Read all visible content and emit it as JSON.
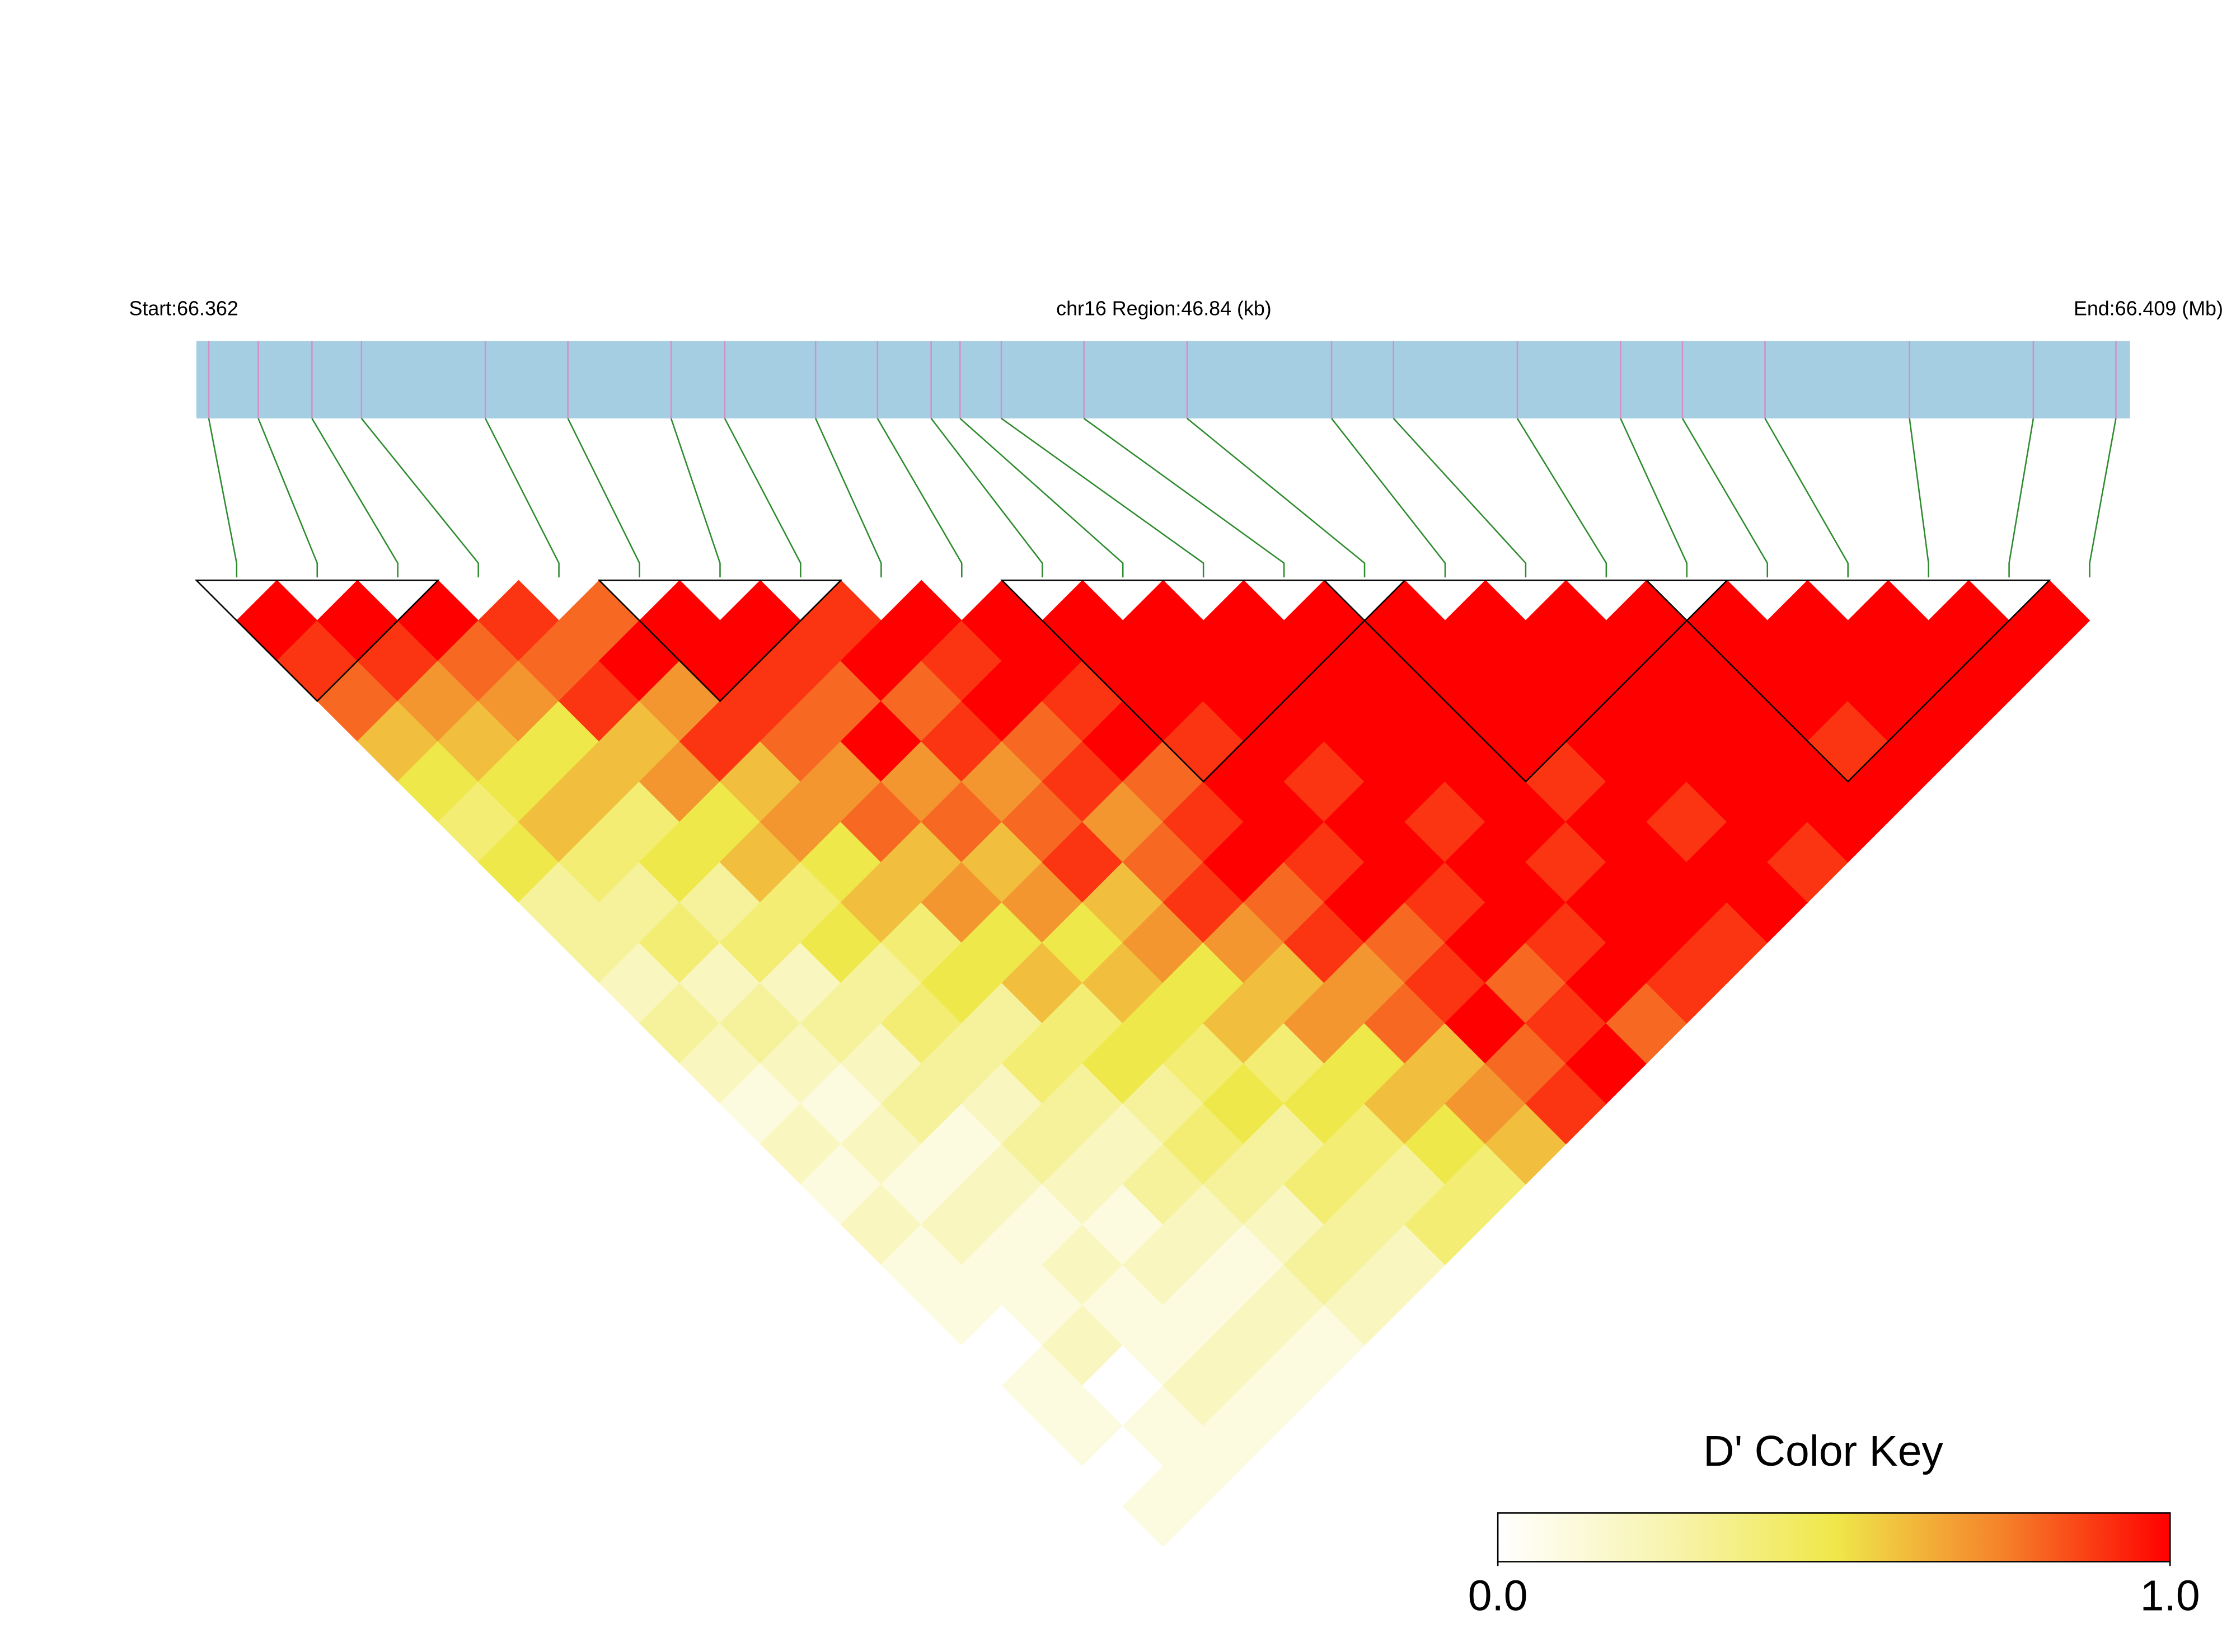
{
  "chart_data": {
    "type": "ld_heatmap",
    "start_label": "Start:66.362",
    "region_label": "chr16 Region:46.84 (kb)",
    "end_label": "End:66.409 (Mb)",
    "xlim": [
      0,
      46.84
    ],
    "positions": [
      0.3,
      1.5,
      2.8,
      4.0,
      7.0,
      9.0,
      11.5,
      12.8,
      15.0,
      16.5,
      17.8,
      18.5,
      19.5,
      21.5,
      24.0,
      27.5,
      29.0,
      32.0,
      34.5,
      36.0,
      38.0,
      41.5,
      44.5,
      46.5
    ],
    "bar_color": "#a6cee3",
    "snp_line_color": "#d48fc8",
    "connector_color": "#2e8b2e",
    "colormap": [
      "#ffffff",
      "#f8f4b0",
      "#efe84a",
      "#f5822a",
      "#ff0000"
    ],
    "dprime": [
      [
        1,
        0.9,
        0.8,
        0.6,
        0.5,
        0.4,
        0.5,
        0.3,
        0.3,
        0.2,
        0.3,
        0.2,
        0.1,
        0.2,
        0.1,
        0.2,
        0.1,
        0.1,
        0,
        0.1,
        0.1,
        0,
        0.1
      ],
      [
        1,
        0.9,
        0.7,
        0.6,
        0.5,
        0.6,
        0.4,
        0.3,
        0.4,
        0.2,
        0.3,
        0.2,
        0.1,
        0.2,
        0.1,
        0.2,
        0.1,
        0.1,
        0.2,
        0,
        0.1,
        0.1
      ],
      [
        1,
        0.8,
        0.7,
        0.5,
        0.6,
        0.4,
        0.5,
        0.3,
        0.4,
        0.2,
        0.3,
        0.2,
        0.3,
        0.1,
        0.2,
        0.1,
        0.2,
        0.1,
        0.1,
        0.2,
        0.1
      ],
      [
        0.9,
        0.8,
        0.9,
        0.6,
        0.7,
        0.5,
        0.6,
        0.4,
        0.5,
        0.3,
        0.4,
        0.3,
        0.2,
        0.3,
        0.2,
        0.1,
        0.2,
        0.1,
        0.2,
        0.1
      ],
      [
        0.8,
        1,
        0.7,
        0.9,
        0.6,
        0.7,
        0.5,
        0.6,
        0.4,
        0.5,
        0.3,
        0.4,
        0.3,
        0.2,
        0.3,
        0.2,
        0.1,
        0.2,
        0.1
      ],
      [
        1,
        1,
        0.9,
        0.8,
        0.7,
        0.8,
        0.6,
        0.7,
        0.5,
        0.6,
        0.4,
        0.5,
        0.3,
        0.4,
        0.3,
        0.2,
        0.3,
        0.2
      ],
      [
        1,
        0.9,
        0.8,
        1,
        0.7,
        0.8,
        0.6,
        0.7,
        0.5,
        0.6,
        0.5,
        0.4,
        0.5,
        0.3,
        0.4,
        0.3,
        0.2
      ],
      [
        0.9,
        1,
        0.8,
        0.9,
        0.7,
        0.8,
        0.9,
        0.6,
        0.7,
        0.5,
        0.6,
        0.4,
        0.5,
        0.4,
        0.3,
        0.4
      ],
      [
        1,
        0.9,
        1,
        0.8,
        0.9,
        0.7,
        0.8,
        0.9,
        0.7,
        0.6,
        0.7,
        0.5,
        0.6,
        0.5,
        0.4
      ],
      [
        1,
        1,
        0.9,
        1,
        0.8,
        0.9,
        1,
        0.8,
        0.9,
        0.7,
        0.8,
        0.6,
        0.7,
        0.6
      ],
      [
        1,
        1,
        1,
        0.9,
        1,
        1,
        0.9,
        1,
        0.8,
        0.9,
        1,
        0.8,
        0.9
      ],
      [
        1,
        1,
        1,
        1,
        0.9,
        1,
        1,
        0.9,
        1,
        0.8,
        0.9,
        1
      ],
      [
        1,
        1,
        1,
        1,
        1,
        0.9,
        1,
        1,
        0.9,
        1,
        0.8
      ],
      [
        1,
        1,
        1,
        1,
        1,
        1,
        0.9,
        1,
        1,
        0.9
      ],
      [
        1,
        1,
        1,
        1,
        0.9,
        1,
        1,
        1,
        0.9
      ],
      [
        1,
        1,
        1,
        1,
        1,
        0.9,
        1,
        1
      ],
      [
        1,
        1,
        1,
        1,
        1,
        1,
        0.9
      ],
      [
        1,
        1,
        1,
        1,
        1,
        1
      ],
      [
        1,
        1,
        1,
        0.9,
        1
      ],
      [
        1,
        1,
        1,
        1
      ],
      [
        1,
        1,
        1
      ],
      [
        1,
        1
      ],
      [
        1
      ]
    ],
    "blocks": [
      [
        0,
        2
      ],
      [
        5,
        7
      ],
      [
        10,
        14
      ],
      [
        14,
        18
      ],
      [
        18,
        22
      ]
    ],
    "color_key": {
      "title": "D' Color Key",
      "lim": [
        0,
        1
      ],
      "ticks": [
        {
          "value": 0,
          "label": "0.0"
        },
        {
          "value": 1,
          "label": "1.0"
        }
      ]
    }
  }
}
